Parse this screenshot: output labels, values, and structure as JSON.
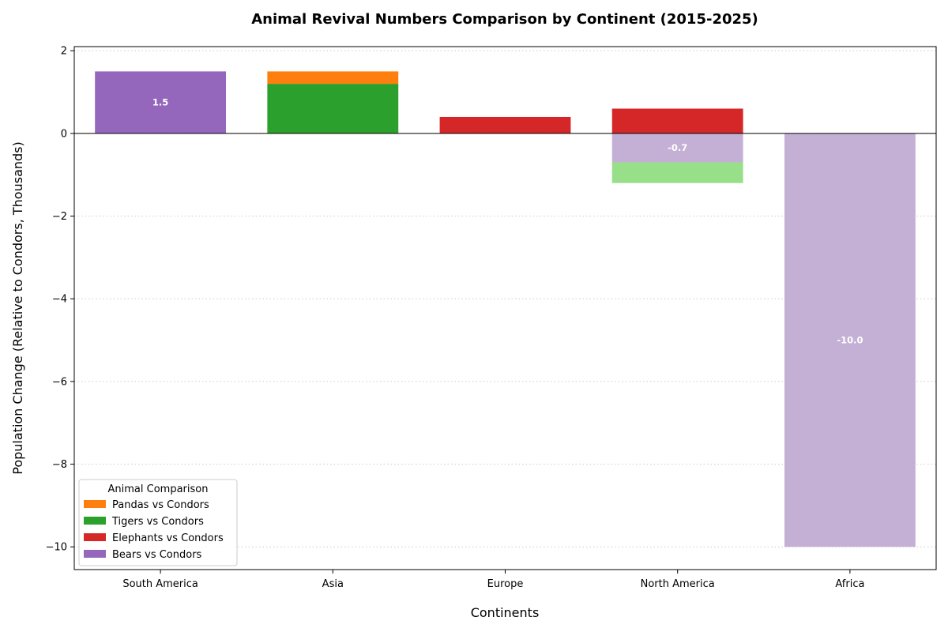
{
  "chart_data": {
    "type": "bar",
    "stacked": true,
    "title": "Animal Revival Numbers Comparison by Continent (2015-2025)",
    "xlabel": "Continents",
    "ylabel": "Population Change (Relative to Condors, Thousands)",
    "categories": [
      "South America",
      "Asia",
      "Europe",
      "North America",
      "Africa"
    ],
    "ylim": [
      -10.55,
      2.1
    ],
    "yticks": [
      2,
      0,
      -2,
      -4,
      -6,
      -8,
      -10
    ],
    "ytick_labels": [
      "2",
      "0",
      "−2",
      "−4",
      "−6",
      "−8",
      "−10"
    ],
    "grid": "y-dotted",
    "legend": {
      "title": "Animal Comparison",
      "position": "lower-left",
      "entries": [
        {
          "label": "Pandas vs Condors",
          "color": "#ff7f0e"
        },
        {
          "label": "Tigers vs Condors",
          "color": "#2ca02c"
        },
        {
          "label": "Elephants vs Condors",
          "color": "#d62728"
        },
        {
          "label": "Bears vs Condors",
          "color": "#9467bd"
        }
      ]
    },
    "segments": [
      {
        "category": "South America",
        "name": "Bears vs Condors",
        "bottom": 0,
        "value": 1.5,
        "color": "#9467bd",
        "label": "1.5"
      },
      {
        "category": "Asia",
        "name": "Tigers vs Condors",
        "bottom": 0,
        "value": 1.2,
        "color": "#2ca02c",
        "label": ""
      },
      {
        "category": "Asia",
        "name": "Pandas vs Condors",
        "bottom": 1.2,
        "value": 0.3,
        "color": "#ff7f0e",
        "label": ""
      },
      {
        "category": "Europe",
        "name": "Elephants vs Condors",
        "bottom": 0,
        "value": 0.4,
        "color": "#d62728",
        "label": ""
      },
      {
        "category": "North America",
        "name": "Elephants vs Condors",
        "bottom": 0,
        "value": 0.6,
        "color": "#d62728",
        "label": ""
      },
      {
        "category": "North America",
        "name": "Bears vs Condors (decline)",
        "bottom": 0,
        "value": -0.7,
        "color": "#c5b0d5",
        "label": "-0.7"
      },
      {
        "category": "North America",
        "name": "Tigers vs Condors (decline)",
        "bottom": -0.7,
        "value": -0.5,
        "color": "#98df8a",
        "label": ""
      },
      {
        "category": "Africa",
        "name": "Bears vs Condors (decline)",
        "bottom": 0,
        "value": -10.0,
        "color": "#c5b0d5",
        "label": "-10.0"
      }
    ]
  }
}
